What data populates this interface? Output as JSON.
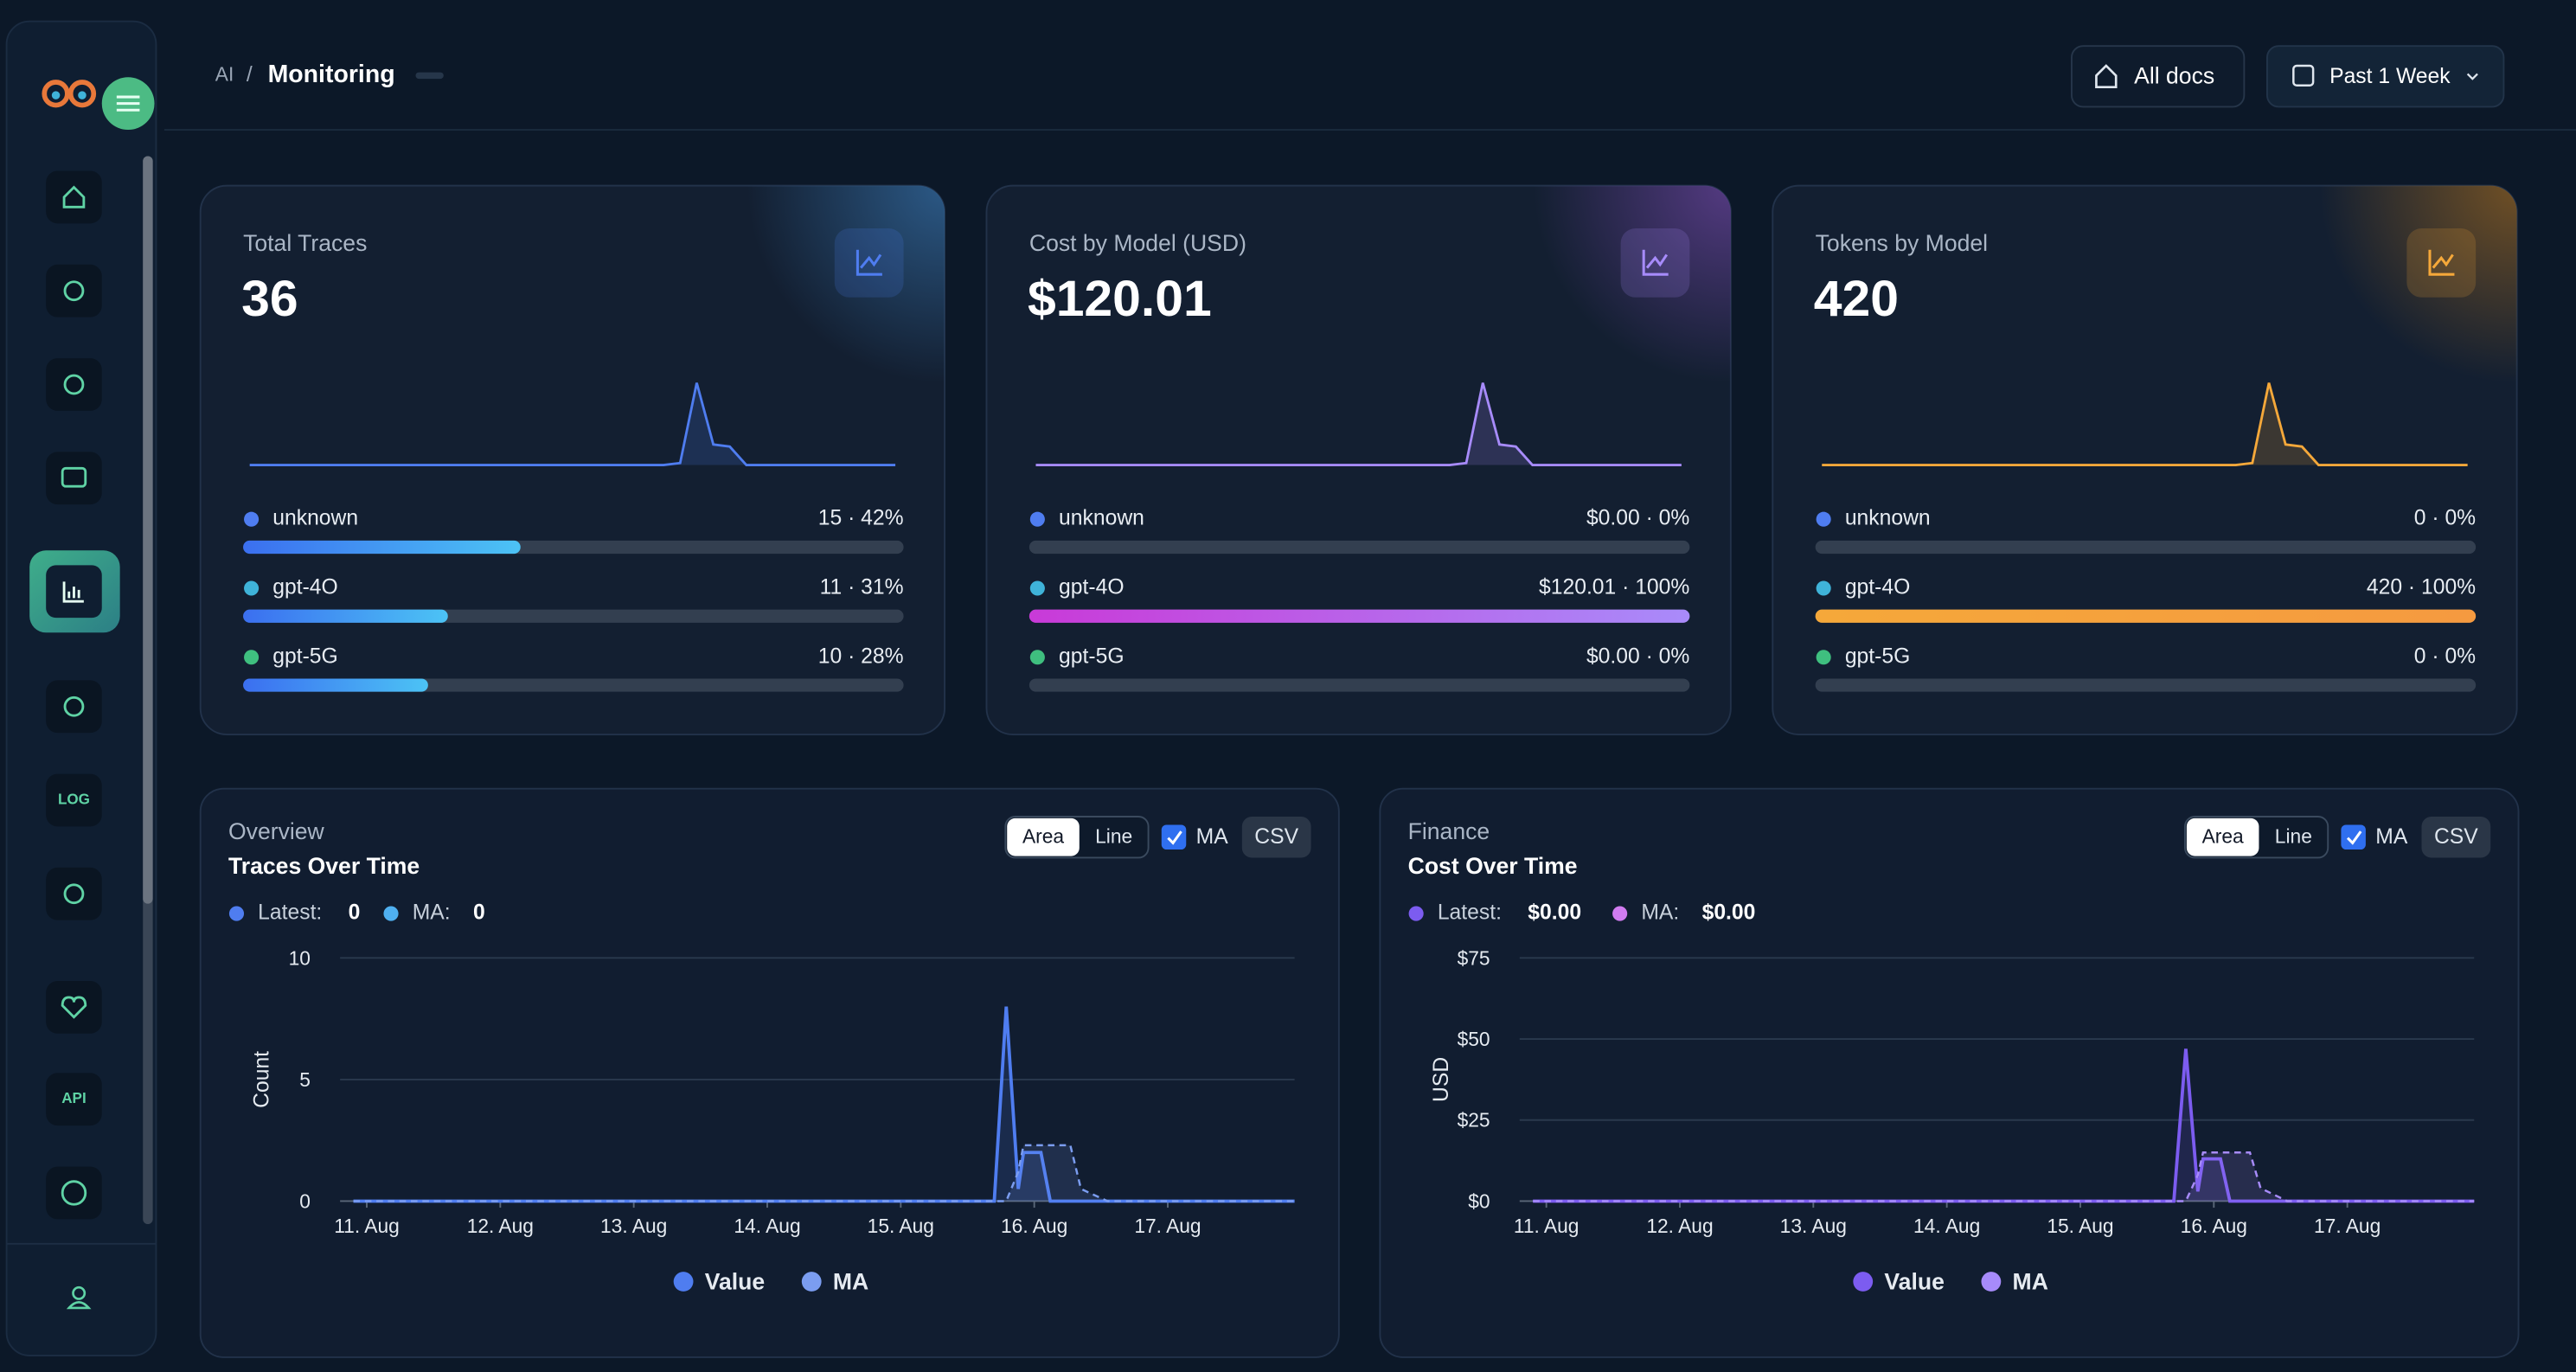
{
  "header": {
    "breadcrumb": [
      "AI",
      "Monitoring"
    ],
    "docs_button": "All docs",
    "range_button": "Past 1 Week"
  },
  "sidebar": {
    "labels": [
      "LOG",
      "API"
    ]
  },
  "stat_cards": [
    {
      "title": "Total Traces",
      "value": 36,
      "color": "#4f7df0",
      "glow": "#2e5f8f",
      "bar_colors": [
        "#3b6ff0",
        "#4cc3f5"
      ],
      "sparkline": [
        0,
        0,
        0,
        0,
        0,
        0,
        0,
        0,
        0,
        0,
        0,
        0,
        0,
        0,
        0,
        0,
        0,
        0,
        0,
        0,
        0,
        0,
        0,
        0,
        0,
        0,
        0.2,
        8,
        2,
        1.8,
        0,
        0,
        0,
        0,
        0,
        0,
        0,
        0,
        0,
        0
      ],
      "models": [
        {
          "name": "unknown",
          "color": "#4f7df0",
          "count": 15,
          "percent": 42,
          "label": "15 · 42%"
        },
        {
          "name": "gpt-4O",
          "color": "#3fb3d9",
          "count": 11,
          "percent": 31,
          "label": "11 · 31%"
        },
        {
          "name": "gpt-5G",
          "color": "#3fbf7f",
          "count": 10,
          "percent": 28,
          "label": "10 · 28%"
        }
      ]
    },
    {
      "title": "Cost by Model (USD)",
      "value": 120.01,
      "value_label": "$120.01",
      "color": "#a78bfa",
      "glow": "#5b3d8a",
      "bar_colors": [
        "#c93ad8",
        "#a98bfa"
      ],
      "sparkline": [
        0,
        0,
        0,
        0,
        0,
        0,
        0,
        0,
        0,
        0,
        0,
        0,
        0,
        0,
        0,
        0,
        0,
        0,
        0,
        0,
        0,
        0,
        0,
        0,
        0,
        0,
        0.2,
        8,
        2,
        1.8,
        0,
        0,
        0,
        0,
        0,
        0,
        0,
        0,
        0,
        0
      ],
      "models": [
        {
          "name": "unknown",
          "color": "#4f7df0",
          "count": 0,
          "percent": 0,
          "label": "$0.00 · 0%"
        },
        {
          "name": "gpt-4O",
          "color": "#3fb3d9",
          "count": 120.01,
          "percent": 100,
          "label": "$120.01 · 100%"
        },
        {
          "name": "gpt-5G",
          "color": "#3fbf7f",
          "count": 0,
          "percent": 0,
          "label": "$0.00 · 0%"
        }
      ]
    },
    {
      "title": "Tokens by Model",
      "value": 420,
      "color": "#f5a83a",
      "glow": "#7a5524",
      "bar_colors": [
        "#f5a83a",
        "#f59a40"
      ],
      "sparkline": [
        0,
        0,
        0,
        0,
        0,
        0,
        0,
        0,
        0,
        0,
        0,
        0,
        0,
        0,
        0,
        0,
        0,
        0,
        0,
        0,
        0,
        0,
        0,
        0,
        0,
        0,
        0.2,
        8,
        2,
        1.8,
        0,
        0,
        0,
        0,
        0,
        0,
        0,
        0,
        0,
        0
      ],
      "models": [
        {
          "name": "unknown",
          "color": "#4f7df0",
          "count": 0,
          "percent": 0,
          "label": "0 · 0%"
        },
        {
          "name": "gpt-4O",
          "color": "#3fb3d9",
          "count": 420,
          "percent": 100,
          "label": "420 · 100%"
        },
        {
          "name": "gpt-5G",
          "color": "#3fbf7f",
          "count": 0,
          "percent": 0,
          "label": "0 · 0%"
        }
      ]
    }
  ],
  "charts": [
    {
      "type": "area",
      "section": "Overview",
      "title": "Traces Over Time",
      "controls": [
        "Area",
        "Line",
        "MA",
        "CSV"
      ],
      "latest": {
        "label": "Latest:",
        "value": 0,
        "color": "#4f7df0"
      },
      "ma": {
        "label": "MA:",
        "value": 0,
        "color": "#4fb0f0"
      },
      "ylabel": "Count",
      "ylim": [
        0,
        10
      ],
      "yticks": [
        0,
        5,
        10
      ],
      "grid": true,
      "xlim": [
        10.8,
        17.95
      ],
      "xticks": [
        {
          "value": 11,
          "label": "11. Aug"
        },
        {
          "value": 12,
          "label": "12. Aug"
        },
        {
          "value": 13,
          "label": "13. Aug"
        },
        {
          "value": 14,
          "label": "14. Aug"
        },
        {
          "value": 15,
          "label": "15. Aug"
        },
        {
          "value": 16,
          "label": "16. Aug"
        },
        {
          "value": 17,
          "label": "17. Aug"
        }
      ],
      "x": [
        10.9,
        15.7,
        15.79,
        15.88,
        15.92,
        16.05,
        16.12,
        16.2,
        16.27,
        16.35,
        16.55,
        17.95
      ],
      "series": [
        {
          "name": "Value",
          "color": "#4f7df0",
          "values": [
            0,
            0,
            8,
            0.5,
            2,
            2,
            0,
            0,
            0,
            0,
            0,
            0
          ]
        },
        {
          "name": "MA",
          "color": "#7b9df0",
          "dashed": true,
          "values": [
            0,
            0,
            0,
            1.2,
            2.3,
            2.3,
            2.3,
            2.3,
            2.3,
            0.5,
            0,
            0
          ]
        }
      ]
    },
    {
      "type": "area",
      "section": "Finance",
      "title": "Cost Over Time",
      "controls": [
        "Area",
        "Line",
        "MA",
        "CSV"
      ],
      "latest": {
        "label": "Latest:",
        "value": 0,
        "value_label": "$0.00",
        "color": "#7c5cf0"
      },
      "ma": {
        "label": "MA:",
        "value": 0,
        "value_label": "$0.00",
        "color": "#d17cf0"
      },
      "ylabel": "USD",
      "ylim": [
        0,
        75
      ],
      "yticks": [
        {
          "value": 0,
          "label": "$0"
        },
        {
          "value": 25,
          "label": "$25"
        },
        {
          "value": 50,
          "label": "$50"
        },
        {
          "value": 75,
          "label": "$75"
        }
      ],
      "grid": true,
      "xlim": [
        10.8,
        17.95
      ],
      "xticks": [
        {
          "value": 11,
          "label": "11. Aug"
        },
        {
          "value": 12,
          "label": "12. Aug"
        },
        {
          "value": 13,
          "label": "13. Aug"
        },
        {
          "value": 14,
          "label": "14. Aug"
        },
        {
          "value": 15,
          "label": "15. Aug"
        },
        {
          "value": 16,
          "label": "16. Aug"
        },
        {
          "value": 17,
          "label": "17. Aug"
        }
      ],
      "x": [
        10.9,
        15.7,
        15.79,
        15.88,
        15.92,
        16.05,
        16.12,
        16.2,
        16.27,
        16.35,
        16.55,
        17.95
      ],
      "series": [
        {
          "name": "Value",
          "color": "#7c5cf0",
          "values": [
            0,
            0,
            47,
            3,
            13,
            13,
            0,
            0,
            0,
            0,
            0,
            0
          ]
        },
        {
          "name": "MA",
          "color": "#a78bfa",
          "dashed": true,
          "values": [
            0,
            0,
            0,
            8,
            15,
            15,
            15,
            15,
            15,
            4,
            0,
            0
          ]
        }
      ]
    }
  ]
}
